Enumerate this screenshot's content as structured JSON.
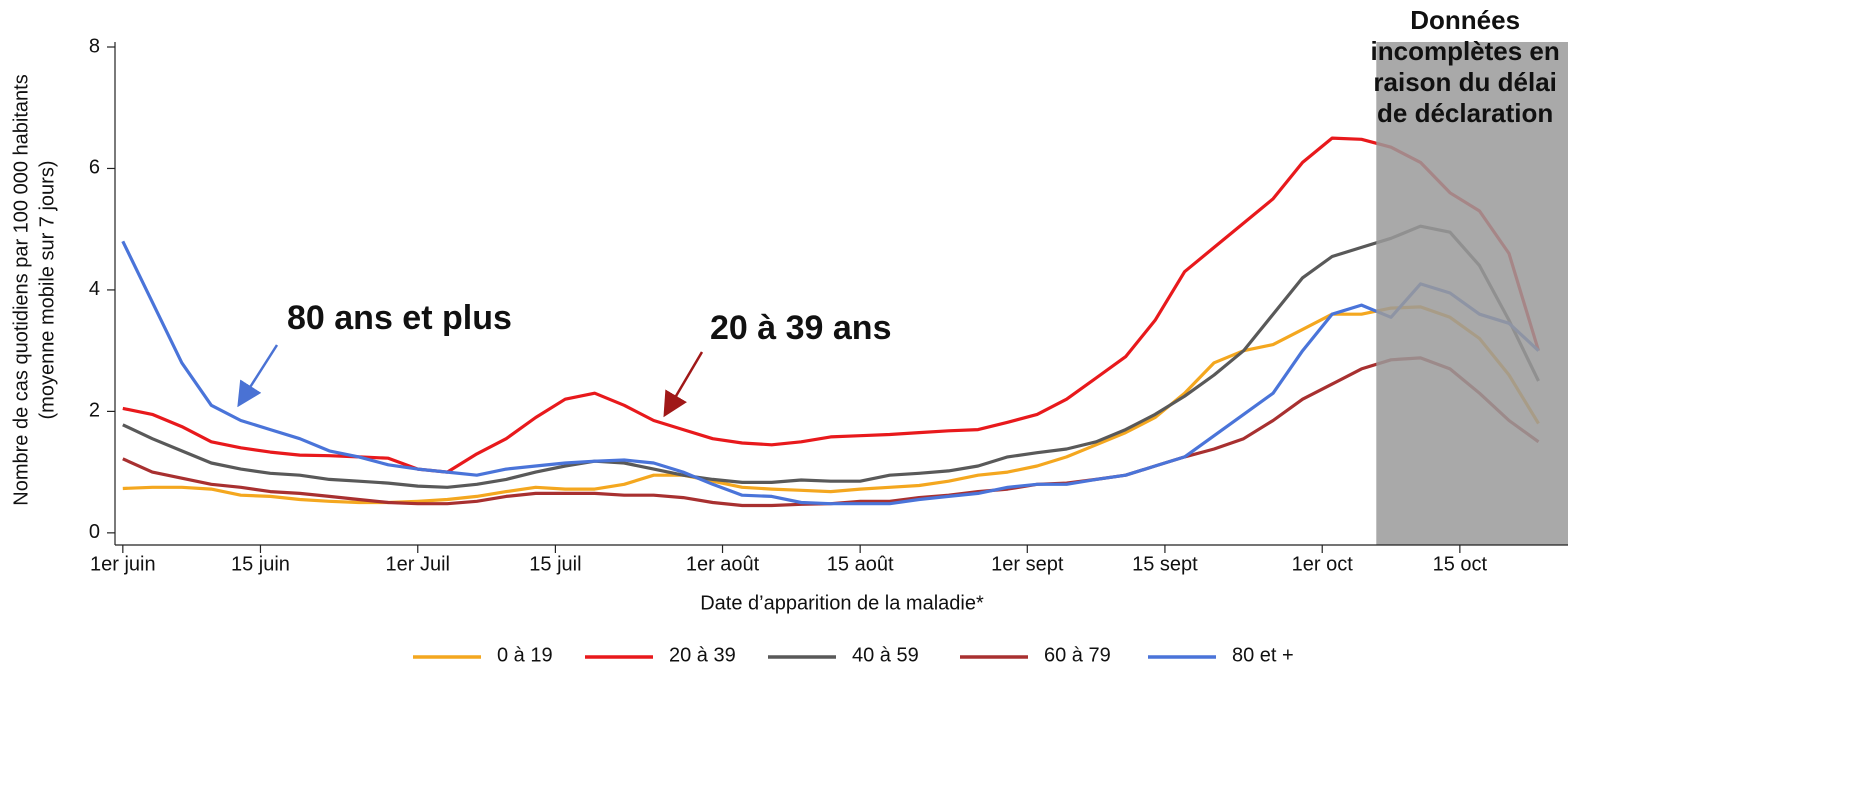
{
  "chart_data": {
    "type": "line",
    "ylabel": [
      "Nombre de cas quotidiens par 100 000 habitants",
      "(moyenne mobile sur 7 jours)"
    ],
    "xlabel": "Date d’apparition de la maladie*",
    "annotations": [
      {
        "text": "80 ans et plus",
        "color": "#4a72d4"
      },
      {
        "text": "20 à 39 ans",
        "color": "#b01c1c"
      }
    ],
    "shaded_region": {
      "from": 127.5,
      "label": [
        "Données",
        "incomplètes en",
        "raison du délai",
        "de déclaration"
      ]
    },
    "xlim": [
      -1,
      147
    ],
    "ylim": [
      -0.2,
      8
    ],
    "yticks": [
      0,
      2,
      4,
      6,
      8
    ],
    "xticks": [
      {
        "value": 0,
        "label": "1er juin"
      },
      {
        "value": 14,
        "label": "15 juin"
      },
      {
        "value": 30,
        "label": "1er Juil"
      },
      {
        "value": 44,
        "label": "15 juil"
      },
      {
        "value": 61,
        "label": "1er août"
      },
      {
        "value": 75,
        "label": "15 août"
      },
      {
        "value": 92,
        "label": "1er sept"
      },
      {
        "value": 106,
        "label": "15 sept"
      },
      {
        "value": 122,
        "label": "1er oct"
      },
      {
        "value": 136,
        "label": "15 oct"
      }
    ],
    "x": [
      0,
      3,
      6,
      9,
      12,
      15,
      18,
      21,
      24,
      27,
      30,
      33,
      36,
      39,
      42,
      45,
      48,
      51,
      54,
      57,
      60,
      63,
      66,
      69,
      72,
      75,
      78,
      81,
      84,
      87,
      90,
      93,
      96,
      99,
      102,
      105,
      108,
      111,
      114,
      117,
      120,
      123,
      126,
      129,
      132,
      135,
      138,
      141,
      144
    ],
    "series": [
      {
        "name": "0 à 19",
        "color": "#f4a71f",
        "values": [
          0.73,
          0.75,
          0.75,
          0.72,
          0.62,
          0.6,
          0.55,
          0.52,
          0.5,
          0.5,
          0.52,
          0.55,
          0.6,
          0.68,
          0.75,
          0.72,
          0.72,
          0.8,
          0.95,
          0.95,
          0.85,
          0.75,
          0.72,
          0.7,
          0.68,
          0.72,
          0.75,
          0.78,
          0.85,
          0.95,
          1.0,
          1.1,
          1.25,
          1.45,
          1.65,
          1.9,
          2.3,
          2.8,
          3.0,
          3.1,
          3.35,
          3.6,
          3.6,
          3.7,
          3.72,
          3.55,
          3.2,
          2.6,
          1.8
        ]
      },
      {
        "name": "20 à 39",
        "color": "#e8191c",
        "values": [
          2.05,
          1.95,
          1.75,
          1.5,
          1.4,
          1.33,
          1.28,
          1.27,
          1.25,
          1.23,
          1.05,
          1.0,
          1.3,
          1.55,
          1.9,
          2.2,
          2.3,
          2.1,
          1.85,
          1.7,
          1.55,
          1.48,
          1.45,
          1.5,
          1.58,
          1.6,
          1.62,
          1.65,
          1.68,
          1.7,
          1.82,
          1.95,
          2.2,
          2.55,
          2.9,
          3.5,
          4.3,
          4.7,
          5.1,
          5.5,
          6.1,
          6.5,
          6.48,
          6.35,
          6.1,
          5.6,
          5.3,
          4.6,
          3.0
        ]
      },
      {
        "name": "40 à 59",
        "color": "#595959",
        "values": [
          1.78,
          1.55,
          1.35,
          1.15,
          1.05,
          0.98,
          0.95,
          0.88,
          0.85,
          0.82,
          0.77,
          0.75,
          0.8,
          0.88,
          1.0,
          1.1,
          1.18,
          1.15,
          1.05,
          0.95,
          0.88,
          0.83,
          0.83,
          0.87,
          0.85,
          0.85,
          0.95,
          0.98,
          1.02,
          1.1,
          1.25,
          1.32,
          1.38,
          1.5,
          1.7,
          1.95,
          2.25,
          2.6,
          3.0,
          3.6,
          4.2,
          4.55,
          4.7,
          4.85,
          5.05,
          4.95,
          4.4,
          3.5,
          2.5
        ]
      },
      {
        "name": "60 à 79",
        "color": "#a83030",
        "values": [
          1.22,
          1.0,
          0.9,
          0.8,
          0.75,
          0.68,
          0.65,
          0.6,
          0.55,
          0.5,
          0.48,
          0.48,
          0.52,
          0.6,
          0.65,
          0.65,
          0.65,
          0.62,
          0.62,
          0.58,
          0.5,
          0.45,
          0.45,
          0.47,
          0.48,
          0.52,
          0.52,
          0.58,
          0.62,
          0.68,
          0.72,
          0.8,
          0.82,
          0.88,
          0.95,
          1.1,
          1.25,
          1.38,
          1.55,
          1.85,
          2.2,
          2.45,
          2.7,
          2.85,
          2.88,
          2.7,
          2.3,
          1.85,
          1.5
        ]
      },
      {
        "name": "80 et +",
        "color": "#4a74d9",
        "values": [
          4.8,
          3.8,
          2.8,
          2.1,
          1.85,
          1.7,
          1.55,
          1.35,
          1.25,
          1.12,
          1.05,
          1.0,
          0.95,
          1.05,
          1.1,
          1.15,
          1.18,
          1.2,
          1.15,
          1.0,
          0.8,
          0.62,
          0.6,
          0.5,
          0.48,
          0.48,
          0.48,
          0.55,
          0.6,
          0.65,
          0.75,
          0.8,
          0.8,
          0.88,
          0.95,
          1.1,
          1.25,
          1.6,
          1.95,
          2.3,
          3.0,
          3.6,
          3.75,
          3.55,
          4.1,
          3.95,
          3.6,
          3.45,
          3.0
        ]
      }
    ]
  }
}
